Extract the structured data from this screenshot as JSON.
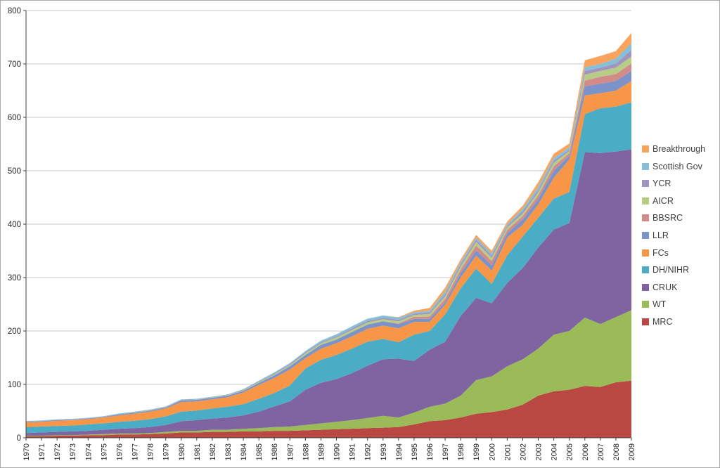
{
  "frame": {
    "background": "#ffffff",
    "border_color": "#ababab"
  },
  "chart_data": {
    "type": "area",
    "stacked": true,
    "title": "",
    "xlabel": "",
    "ylabel": "",
    "grid": true,
    "legend_position": "right",
    "x": [
      "1970",
      "1971",
      "1972",
      "1973",
      "1974",
      "1975",
      "1976",
      "1977",
      "1978",
      "1979",
      "1980",
      "1981",
      "1982",
      "1983",
      "1984",
      "1985",
      "1986",
      "1987",
      "1988",
      "1989",
      "1990",
      "1991",
      "1992",
      "1993",
      "1994",
      "1995",
      "1996",
      "1997",
      "1998",
      "1999",
      "2000",
      "2001",
      "2002",
      "2003",
      "2004",
      "2005",
      "2006",
      "2007",
      "2008",
      "2009"
    ],
    "y_axis": {
      "min": 0,
      "max": 800,
      "step": 100,
      "ticks": [
        0,
        100,
        200,
        300,
        400,
        500,
        600,
        700,
        800
      ],
      "tick_labels": [
        "0",
        "100",
        "200",
        "300",
        "400",
        "500",
        "600",
        "700",
        "800"
      ]
    },
    "series": [
      {
        "name": "MRC",
        "color": "#b94742",
        "values": [
          3,
          3,
          4,
          4,
          5,
          5,
          6,
          6,
          7,
          8,
          10,
          10,
          11,
          11,
          12,
          12,
          13,
          13,
          14,
          15,
          16,
          17,
          18,
          19,
          20,
          25,
          31,
          33,
          38,
          45,
          48,
          53,
          62,
          79,
          87,
          90,
          97,
          95,
          104,
          107
        ]
      },
      {
        "name": "WT",
        "color": "#9bbb59",
        "values": [
          1,
          1,
          1,
          1,
          1,
          2,
          2,
          2,
          2,
          3,
          3,
          3,
          4,
          4,
          5,
          6,
          7,
          8,
          10,
          12,
          14,
          16,
          19,
          22,
          18,
          22,
          27,
          31,
          41,
          63,
          67,
          81,
          85,
          88,
          106,
          110,
          128,
          118,
          122,
          132
        ]
      },
      {
        "name": "CRUK",
        "color": "#8064a2",
        "values": [
          5,
          6,
          6,
          7,
          7,
          8,
          9,
          10,
          11,
          13,
          18,
          20,
          21,
          23,
          25,
          31,
          39,
          47,
          66,
          76,
          80,
          88,
          98,
          106,
          110,
          97,
          107,
          116,
          149,
          154,
          137,
          156,
          171,
          189,
          197,
          202,
          310,
          320,
          310,
          301
        ]
      },
      {
        "name": "DH/NIHR",
        "color": "#4bacc6",
        "values": [
          11,
          11,
          11,
          11,
          12,
          12,
          13,
          14,
          15,
          16,
          18,
          18,
          19,
          20,
          21,
          24,
          25,
          30,
          40,
          43,
          45,
          46,
          45,
          38,
          31,
          49,
          35,
          51,
          52,
          55,
          36,
          52,
          59,
          56,
          58,
          58,
          71,
          84,
          84,
          88
        ]
      },
      {
        "name": "FCs",
        "color": "#f79646",
        "values": [
          9,
          9,
          10,
          10,
          10,
          11,
          12,
          13,
          14,
          15,
          18,
          17,
          17,
          18,
          22,
          26,
          28,
          30,
          19,
          21,
          22,
          23,
          24,
          25,
          26,
          24,
          17,
          18,
          20,
          24,
          25,
          33,
          22,
          25,
          39,
          61,
          35,
          28,
          30,
          40
        ]
      },
      {
        "name": "LLR",
        "color": "#7b93c8",
        "values": [
          1,
          1,
          1,
          1,
          1,
          1,
          2,
          2,
          2,
          2,
          3,
          3,
          3,
          3,
          3,
          4,
          5,
          6,
          6,
          7,
          7,
          8,
          8,
          8,
          8,
          5.5,
          5.5,
          5,
          8,
          10,
          10,
          8,
          10,
          10,
          13,
          7,
          17,
          18,
          18,
          19
        ]
      },
      {
        "name": "BBSRC",
        "color": "#d28b89",
        "values": [
          0,
          0,
          0,
          0,
          0,
          0,
          0,
          0,
          0,
          0,
          0,
          0,
          0,
          0,
          0,
          0,
          0,
          0,
          0,
          0,
          0,
          0,
          0,
          0,
          1,
          4,
          4.5,
          6,
          7,
          9,
          8,
          6,
          6,
          7,
          8,
          5,
          11,
          13,
          13,
          14
        ]
      },
      {
        "name": "AICR",
        "color": "#b7cd85",
        "values": [
          0,
          0,
          0,
          0,
          0,
          0,
          0,
          0.5,
          0.5,
          0.5,
          0.5,
          0.5,
          0.5,
          1,
          1,
          1.5,
          2,
          2,
          3,
          3,
          4,
          4,
          4,
          4,
          4,
          3.5,
          5,
          5,
          6,
          7,
          6,
          5,
          5,
          6,
          7,
          4,
          11,
          11,
          12,
          13
        ]
      },
      {
        "name": "YCR",
        "color": "#a294c0",
        "values": [
          0.5,
          0.5,
          0.5,
          0.5,
          0.5,
          0.5,
          0.5,
          0.5,
          0.5,
          0.5,
          0.5,
          0.5,
          0.5,
          0.5,
          1,
          1,
          1.5,
          2,
          2,
          2,
          2,
          3,
          3,
          3,
          3,
          2.5,
          3,
          4,
          4,
          4,
          4,
          3,
          4.5,
          4,
          4,
          3,
          7,
          6,
          8,
          12
        ]
      },
      {
        "name": "Scottish Gov",
        "color": "#84c1d8",
        "values": [
          1,
          1,
          1,
          1,
          1,
          1,
          1,
          1,
          1,
          1,
          1,
          1,
          1,
          1,
          1,
          1.5,
          2,
          2,
          2.5,
          3,
          4,
          4,
          4,
          4,
          4,
          2.5,
          3,
          5,
          4,
          4,
          4,
          3,
          4.5,
          6,
          5,
          4,
          7,
          7,
          9,
          13
        ]
      },
      {
        "name": "Breakthrough",
        "color": "#f9a35d",
        "values": [
          0,
          0,
          0,
          0,
          0,
          0,
          0,
          0,
          0,
          0,
          0,
          0,
          0,
          0,
          0,
          0,
          0,
          0,
          0,
          0,
          0,
          0,
          0,
          0,
          1,
          3,
          5,
          7,
          5,
          5,
          5,
          5,
          5.5,
          8.5,
          8,
          7,
          13,
          15,
          14,
          19
        ]
      }
    ],
    "legend_order_top_to_bottom": [
      "Breakthrough",
      "Scottish Gov",
      "YCR",
      "AICR",
      "BBSRC",
      "LLR",
      "FCs",
      "DH/NIHR",
      "CRUK",
      "WT",
      "MRC"
    ],
    "style": {
      "grid_color": "#c9c9c9",
      "axis_color": "#404040",
      "tick_color": "#404040",
      "axis_label_color": "#262626",
      "x_label_font_px": 11,
      "y_label_font_px": 11.5
    }
  }
}
